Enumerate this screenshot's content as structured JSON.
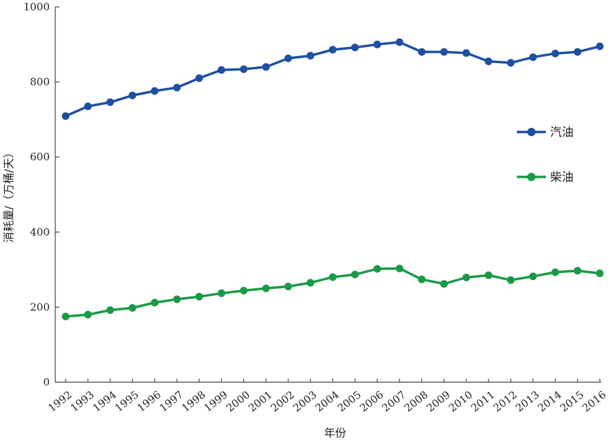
{
  "chart_data": {
    "type": "line",
    "title": "",
    "xlabel": "年份",
    "ylabel": "消耗量/（万桶/天）",
    "ylim": [
      0,
      1000
    ],
    "yticks": [
      0,
      200,
      400,
      600,
      800,
      1000
    ],
    "grid": false,
    "legend_placement": "right",
    "categories": [
      "1992",
      "1993",
      "1994",
      "1995",
      "1996",
      "1997",
      "1998",
      "1999",
      "2000",
      "2001",
      "2002",
      "2003",
      "2004",
      "2005",
      "2006",
      "2007",
      "2008",
      "2009",
      "2010",
      "2011",
      "2012",
      "2013",
      "2014",
      "2015",
      "2016"
    ],
    "series": [
      {
        "name": "汽油",
        "color": "#1f4fa0",
        "values": [
          709,
          735,
          746,
          764,
          776,
          785,
          810,
          832,
          834,
          840,
          863,
          870,
          886,
          892,
          900,
          906,
          880,
          880,
          877,
          855,
          851,
          866,
          876,
          880,
          895
        ]
      },
      {
        "name": "柴油",
        "color": "#1a9a47",
        "values": [
          175,
          180,
          192,
          198,
          212,
          221,
          228,
          237,
          244,
          250,
          255,
          265,
          280,
          287,
          302,
          303,
          274,
          262,
          279,
          285,
          272,
          282,
          293,
          297,
          290
        ]
      }
    ]
  }
}
